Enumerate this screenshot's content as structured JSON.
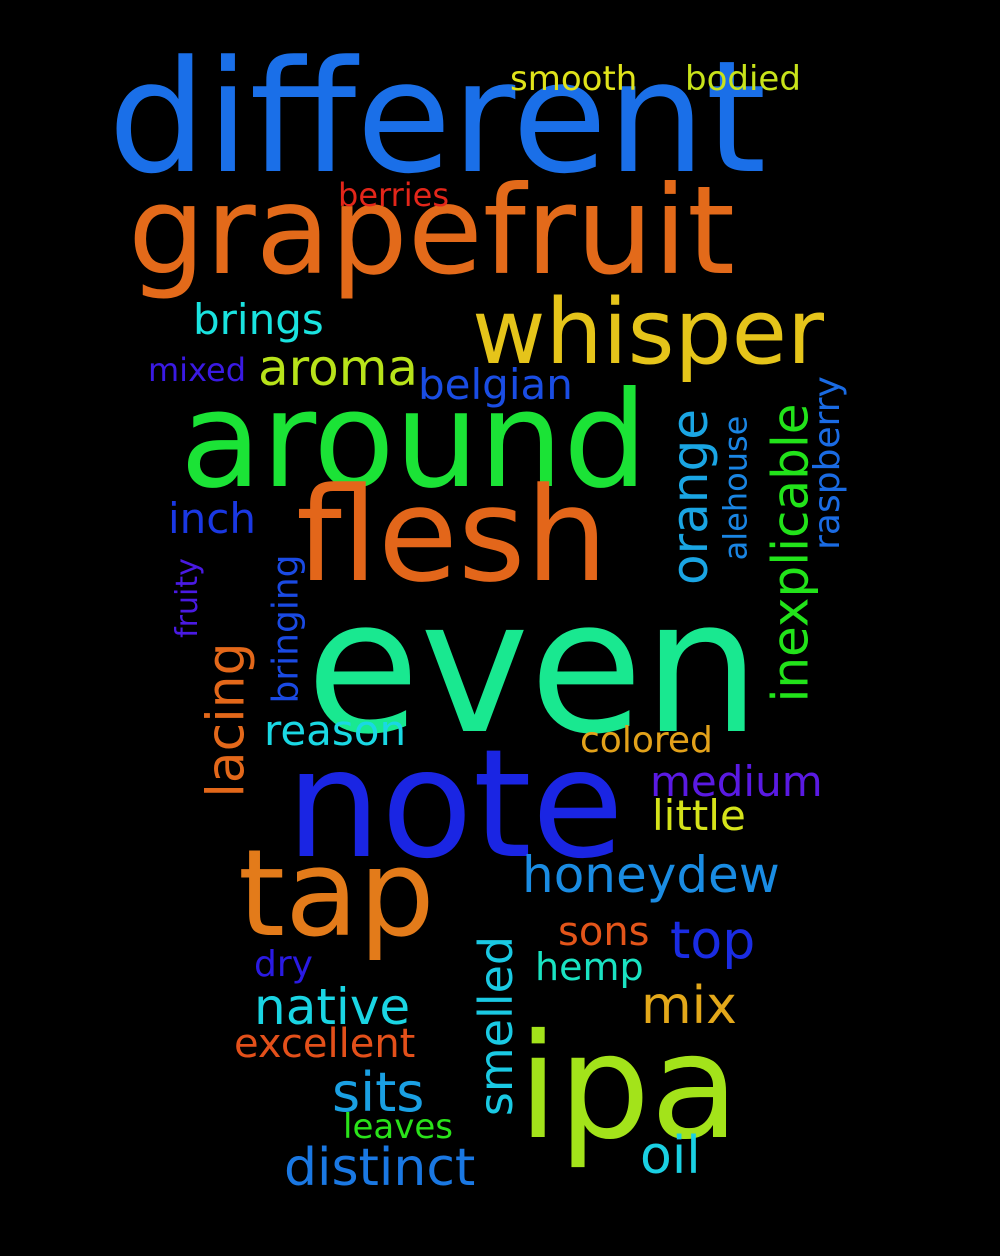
{
  "background_color": "#000000",
  "words": [
    {
      "text": "different",
      "color": "#1A6FE8"
    },
    {
      "text": "grapefruit",
      "color": "#E36A1A"
    },
    {
      "text": "whisper",
      "color": "#E5C41A"
    },
    {
      "text": "around",
      "color": "#1BE336"
    },
    {
      "text": "flesh",
      "color": "#E3661A"
    },
    {
      "text": "even",
      "color": "#19E890"
    },
    {
      "text": "note",
      "color": "#1A25E3"
    },
    {
      "text": "tap",
      "color": "#E37B1A"
    },
    {
      "text": "ipa",
      "color": "#A3E31A"
    },
    {
      "text": "smooth",
      "color": "#E0E31A"
    },
    {
      "text": "bodied",
      "color": "#C8E31A"
    },
    {
      "text": "berries",
      "color": "#E3261A"
    },
    {
      "text": "brings",
      "color": "#1AE3E0"
    },
    {
      "text": "aroma",
      "color": "#B8E31A"
    },
    {
      "text": "mixed",
      "color": "#3A1AE3"
    },
    {
      "text": "belgian",
      "color": "#1A4DE3"
    },
    {
      "text": "inexplicable",
      "color": "#22E31A"
    },
    {
      "text": "orange",
      "color": "#1AA5E3"
    },
    {
      "text": "raspberry",
      "color": "#1A6BE3"
    },
    {
      "text": "alehouse",
      "color": "#1A85E3"
    },
    {
      "text": "inch",
      "color": "#1A38E3"
    },
    {
      "text": "fruity",
      "color": "#4A1AE3"
    },
    {
      "text": "bringing",
      "color": "#1A4AE3"
    },
    {
      "text": "lacing",
      "color": "#E3681A"
    },
    {
      "text": "reason",
      "color": "#1AD8E3"
    },
    {
      "text": "colored",
      "color": "#E3A21A"
    },
    {
      "text": "medium",
      "color": "#5A1AE3"
    },
    {
      "text": "little",
      "color": "#D5E31A"
    },
    {
      "text": "honeydew",
      "color": "#1A8CE3"
    },
    {
      "text": "smelled",
      "color": "#1AC9E3"
    },
    {
      "text": "sons",
      "color": "#E3551A"
    },
    {
      "text": "top",
      "color": "#1A2CE3"
    },
    {
      "text": "dry",
      "color": "#2A1AE3"
    },
    {
      "text": "hemp",
      "color": "#1AE3C2"
    },
    {
      "text": "native",
      "color": "#1AD5E3"
    },
    {
      "text": "mix",
      "color": "#E3A81A"
    },
    {
      "text": "excellent",
      "color": "#E3501A"
    },
    {
      "text": "sits",
      "color": "#1AA0E3"
    },
    {
      "text": "leaves",
      "color": "#2AE31A"
    },
    {
      "text": "oil",
      "color": "#1AD0E3"
    },
    {
      "text": "distinct",
      "color": "#1A78E3"
    }
  ]
}
